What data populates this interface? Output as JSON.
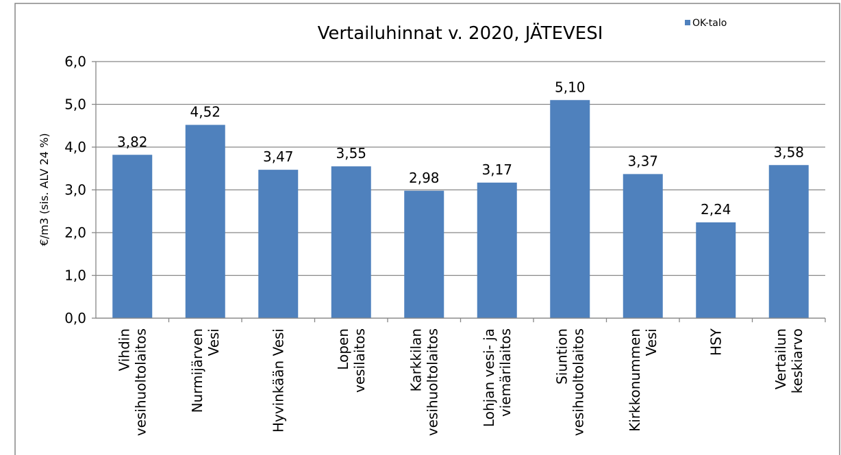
{
  "chart_data": {
    "type": "bar",
    "title": "Vertailuhinnat v. 2020, JÄTEVESI",
    "y_axis_label": "€/m3 (sis. ALV 24 %)",
    "categories": [
      "Vihdin\nvesihuoltolaitos",
      "Nurmijärven\nVesi",
      "Hyvinkään Vesi",
      "Lopen\nvesilaitos",
      "Karkkilan\nvesihuoltolaitos",
      "Lohjan vesi- ja\nviemärilaitos",
      "Siuntion\nvesihuoltolaitos",
      "Kirkkonummen\nVesi",
      "HSY",
      "Vertailun\nkeskiarvo"
    ],
    "series": [
      {
        "name": "OK-talo",
        "color": "#4f81bd",
        "values": [
          3.82,
          4.52,
          3.47,
          3.55,
          2.98,
          3.17,
          5.1,
          3.37,
          2.24,
          3.58
        ],
        "value_labels": [
          "3,82",
          "4,52",
          "3,47",
          "3,55",
          "2,98",
          "3,17",
          "5,10",
          "3,37",
          "2,24",
          "3,58"
        ]
      }
    ],
    "ylim": [
      0,
      6
    ],
    "yticks": [
      {
        "value": 0,
        "label": "0,0"
      },
      {
        "value": 1,
        "label": "1,0"
      },
      {
        "value": 2,
        "label": "2,0"
      },
      {
        "value": 3,
        "label": "3,0"
      },
      {
        "value": 4,
        "label": "4,0"
      },
      {
        "value": 5,
        "label": "5,0"
      },
      {
        "value": 6,
        "label": "6,0"
      }
    ],
    "grid": true,
    "legend": "top-right"
  }
}
